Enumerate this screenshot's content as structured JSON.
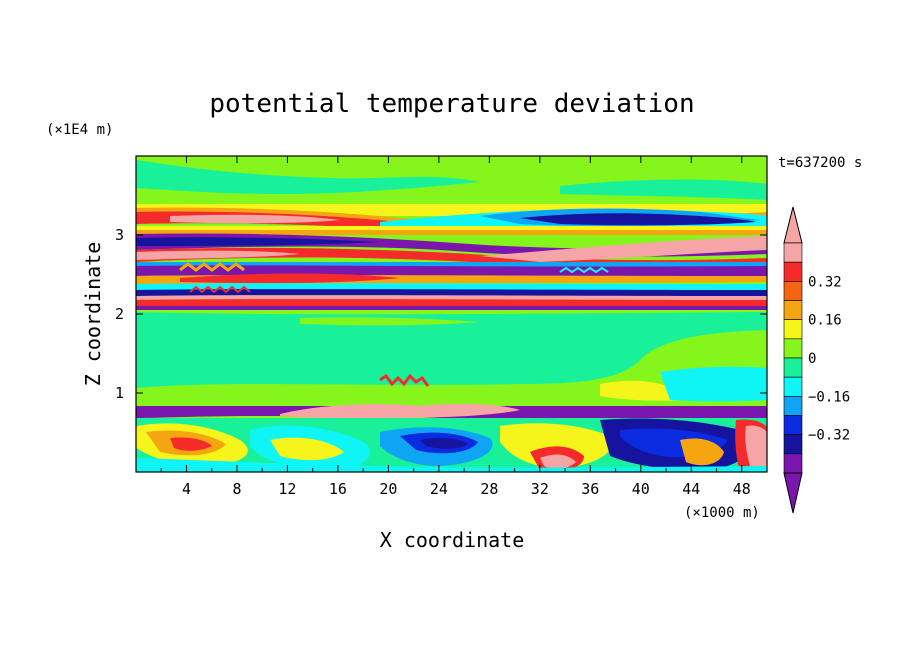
{
  "chart_data": {
    "type": "heatmap",
    "title": "potential temperature deviation",
    "time_label": "t=637200 s",
    "xlabel": "X coordinate",
    "ylabel": "Z coordinate",
    "x_unit": "(×1000 m)",
    "y_unit": "(×1E4 m)",
    "xlim": [
      0,
      50
    ],
    "ylim": [
      0,
      4
    ],
    "x_ticks": [
      "4",
      "8",
      "12",
      "16",
      "20",
      "24",
      "28",
      "32",
      "36",
      "40",
      "44",
      "48"
    ],
    "y_ticks": [
      "1",
      "2",
      "3"
    ],
    "colorbar": {
      "tick_labels": [
        "0.32",
        "0.16",
        "0",
        "−0.16",
        "−0.32"
      ],
      "levels": [
        -0.4,
        -0.32,
        -0.24,
        -0.16,
        -0.08,
        0,
        0.08,
        0.16,
        0.24,
        0.32,
        0.4
      ],
      "colors": [
        "#7b16ac",
        "#16139e",
        "#0b2be0",
        "#0ea5f5",
        "#0ff5f5",
        "#18f09a",
        "#86f51b",
        "#f5f51b",
        "#f5a50f",
        "#f5650f",
        "#f52a2a",
        "#f5a5a5"
      ],
      "under_color": "#7b16ac",
      "over_color": "#f5a5a5"
    }
  }
}
